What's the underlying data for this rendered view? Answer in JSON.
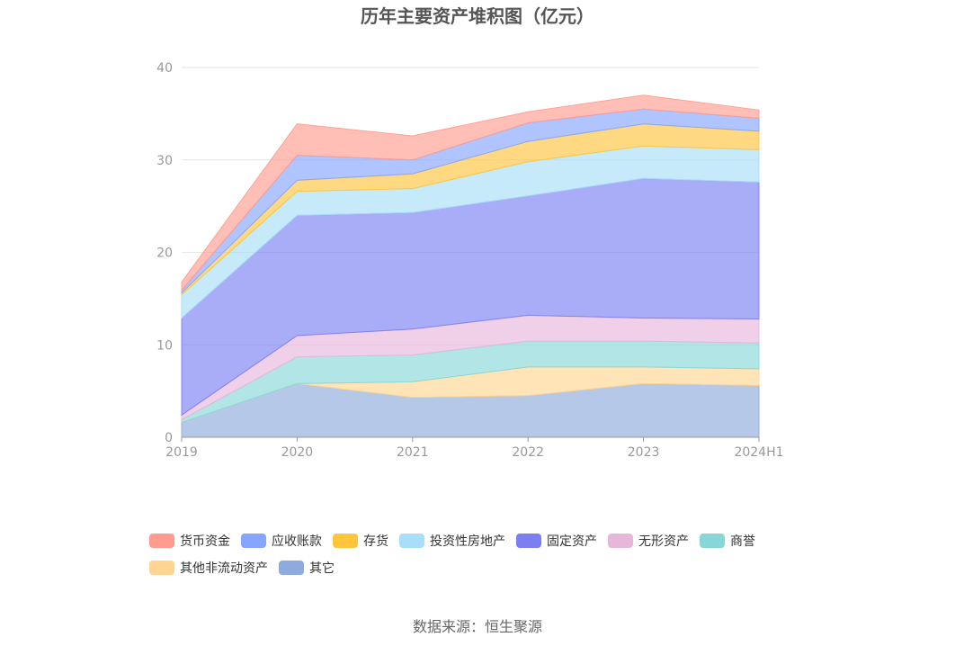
{
  "title": "历年主要资产堆积图（亿元）",
  "source": "数据来源：恒生聚源",
  "chart_data": {
    "type": "area",
    "stacked": true,
    "title": "历年主要资产堆积图（亿元）",
    "categories": [
      "2019",
      "2020",
      "2021",
      "2022",
      "2023",
      "2024H1"
    ],
    "ylim": [
      0,
      40
    ],
    "yticks": [
      "0",
      "10",
      "20",
      "30",
      "40"
    ],
    "grid": true,
    "legend_position": "bottom",
    "series": [
      {
        "name": "其它",
        "color": "#8FAADC",
        "values": [
          1.6,
          5.8,
          4.3,
          4.5,
          5.8,
          5.6
        ]
      },
      {
        "name": "其他非流动资产",
        "color": "#FFD591",
        "values": [
          0.0,
          0.0,
          1.7,
          3.1,
          1.8,
          1.8
        ]
      },
      {
        "name": "商誉",
        "color": "#87D7D8",
        "values": [
          0.3,
          2.9,
          2.9,
          2.8,
          2.8,
          2.8
        ]
      },
      {
        "name": "无形资产",
        "color": "#E7B7DB",
        "values": [
          0.5,
          2.3,
          2.8,
          2.8,
          2.5,
          2.6
        ]
      },
      {
        "name": "固定资产",
        "color": "#7B7FF2",
        "values": [
          10.5,
          13.0,
          12.6,
          12.9,
          15.1,
          14.8
        ]
      },
      {
        "name": "投资性房地产",
        "color": "#A9DEF9",
        "values": [
          2.5,
          2.6,
          2.6,
          3.7,
          3.5,
          3.5
        ]
      },
      {
        "name": "存货",
        "color": "#FFC53D",
        "values": [
          0.2,
          1.2,
          1.6,
          2.2,
          2.4,
          2.0
        ]
      },
      {
        "name": "应收账款",
        "color": "#85A5FF",
        "values": [
          0.3,
          2.7,
          1.5,
          2.0,
          1.6,
          1.4
        ]
      },
      {
        "name": "货币资金",
        "color": "#FF9C8F",
        "values": [
          0.9,
          3.4,
          2.6,
          1.2,
          1.5,
          0.9
        ]
      }
    ]
  },
  "legend": [
    {
      "label": "货币资金",
      "color": "#FF9C8F"
    },
    {
      "label": "应收账款",
      "color": "#85A5FF"
    },
    {
      "label": "存货",
      "color": "#FFC53D"
    },
    {
      "label": "投资性房地产",
      "color": "#A9DEF9"
    },
    {
      "label": "固定资产",
      "color": "#7B7FF2"
    },
    {
      "label": "无形资产",
      "color": "#E7B7DB"
    },
    {
      "label": "商誉",
      "color": "#87D7D8"
    },
    {
      "label": "其他非流动资产",
      "color": "#FFD591"
    },
    {
      "label": "其它",
      "color": "#8FAADC"
    }
  ]
}
